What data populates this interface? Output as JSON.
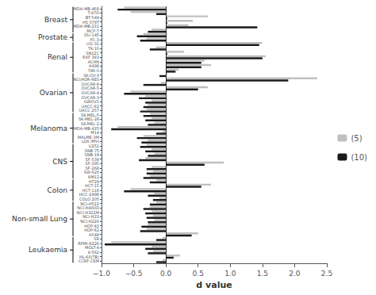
{
  "chart_data": {
    "type": "bar",
    "orientation": "horizontal",
    "xlabel": "d value",
    "categories": [
      "MDA-MB-468",
      "T-47D",
      "BT-549",
      "HS 578T",
      "MDA-MB-231",
      "MCF-7",
      "DU-145",
      "PC-3",
      "UO-31",
      "TK-10",
      "SN12C",
      "RXF 393",
      "ACHN",
      "A498",
      "786-0",
      "SK-OV-3",
      "NCI/ADR-RES",
      "OVCAR-8",
      "OVCAR-5",
      "OVCAR-4",
      "OVCAR-3",
      "IGROV1",
      "UACC-62",
      "UACC-257",
      "SK-MEL-5",
      "SK-MEL-28",
      "SK-MEL-2",
      "MDA-MB-435",
      "M14",
      "MALME-3M",
      "LOX IMVI",
      "U251",
      "SNB-75",
      "SNB-19",
      "SF-539",
      "SF-295",
      "SF-268",
      "SW-620",
      "KM12",
      "HT29",
      "HCT-15",
      "HCT-116",
      "HCC-2998",
      "COLO 205",
      "NCI-H522",
      "NCI-H460D",
      "NCI-H322M",
      "NCI-H23",
      "NCI-H226",
      "HOP-92",
      "HOP-62",
      "A549",
      "SR",
      "RPMI-8226",
      "MOLT-4",
      "K-562",
      "HL-60(TB)",
      "CCRF-CEM"
    ],
    "groups": [
      "Breast",
      "Breast",
      "Breast",
      "Breast",
      "Breast",
      "Breast",
      "Prostate",
      "Prostate",
      "Renal",
      "Renal",
      "Renal",
      "Renal",
      "Renal",
      "Renal",
      "Renal",
      "Ovarian",
      "Ovarian",
      "Ovarian",
      "Ovarian",
      "Ovarian",
      "Ovarian",
      "Ovarian",
      "Ovarian",
      "Ovarian",
      "Melanoma",
      "Melanoma",
      "Melanoma",
      "Melanoma",
      "Melanoma",
      "Melanoma",
      "Melanoma",
      "CNS",
      "CNS",
      "CNS",
      "CNS",
      "CNS",
      "CNS",
      "CNS",
      "CNS",
      "Colon",
      "Colon",
      "Colon",
      "Colon",
      "Colon",
      "Non-small Lung",
      "Non-small Lung",
      "Non-small Lung",
      "Non-small Lung",
      "Non-small Lung",
      "Non-small Lung",
      "Non-small Lung",
      "Non-small Lung",
      "Leukaemia",
      "Leukaemia",
      "Leukaemia",
      "Leukaemia",
      "Leukaemia",
      "Leukaemia"
    ],
    "series": [
      {
        "name": "(5)",
        "color": "#c0c0c0",
        "values": [
          -0.65,
          -0.55,
          0.65,
          0.42,
          0.35,
          -0.22,
          -0.35,
          -0.3,
          1.5,
          -0.15,
          0.28,
          1.55,
          0.6,
          0.7,
          0.2,
          0.02,
          2.35,
          -0.08,
          0.65,
          -0.55,
          -0.32,
          -0.22,
          -0.28,
          -0.3,
          -0.25,
          -0.22,
          -0.18,
          -0.75,
          -0.05,
          -0.35,
          -0.28,
          -0.3,
          -0.22,
          -0.18,
          -0.32,
          0.9,
          -0.22,
          -0.2,
          -0.25,
          -0.15,
          0.7,
          -0.55,
          -0.18,
          -0.1,
          -0.15,
          -0.25,
          -0.22,
          -0.2,
          -0.18,
          -0.28,
          -0.3,
          0.5,
          -0.05,
          -0.85,
          -0.22,
          -0.2,
          0.22,
          -0.05
        ]
      },
      {
        "name": "(10)",
        "color": "#1a1a1a",
        "values": [
          -0.75,
          -0.15,
          0.02,
          0.02,
          1.42,
          -0.28,
          -0.45,
          -0.4,
          1.45,
          -0.25,
          0.02,
          1.5,
          0.55,
          0.55,
          0.15,
          -0.1,
          1.9,
          -0.35,
          0.5,
          -0.65,
          -0.42,
          -0.32,
          -0.35,
          -0.4,
          -0.35,
          -0.32,
          -0.28,
          -0.85,
          -0.15,
          -0.45,
          -0.38,
          -0.4,
          -0.32,
          -0.28,
          -0.42,
          0.6,
          -0.3,
          -0.3,
          -0.35,
          -0.25,
          0.55,
          -0.65,
          -0.28,
          -0.2,
          -0.25,
          -0.35,
          -0.32,
          -0.3,
          -0.28,
          -0.38,
          -0.4,
          0.4,
          -0.15,
          -0.95,
          -0.32,
          -0.28,
          0.12,
          -0.15
        ]
      }
    ],
    "xlim": [
      -1.0,
      2.5
    ],
    "xticks": [
      {
        "value": -1.0,
        "label": "−1.0"
      },
      {
        "value": -0.5,
        "label": "−0.5"
      },
      {
        "value": 0.0,
        "label": "0.0"
      },
      0.5,
      {
        "value": 1.0,
        "label": "1.0"
      },
      1.5,
      {
        "value": 2.0,
        "label": "2.0"
      },
      2.5
    ],
    "grid": false,
    "legend": "right"
  }
}
